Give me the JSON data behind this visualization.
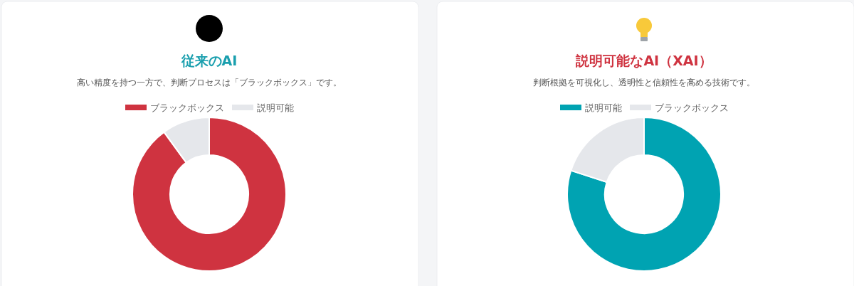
{
  "chart_data": [
    {
      "type": "donut",
      "title": "従来のAI",
      "subtitle": "高い精度を持つ一方で、判断プロセスは「ブラックボックス」です。",
      "categories": [
        "ブラックボックス",
        "説明可能"
      ],
      "values": [
        90,
        10
      ],
      "colors": [
        "#cf3340",
        "#e5e7eb"
      ],
      "legend": "top"
    },
    {
      "type": "donut",
      "title": "説明可能なAI（XAI）",
      "subtitle": "判断根拠を可視化し、透明性と信頼性を高める技術です。",
      "categories": [
        "説明可能",
        "ブラックボックス"
      ],
      "values": [
        80,
        20
      ],
      "colors": [
        "#00a3b2",
        "#e5e7eb"
      ],
      "legend": "top"
    }
  ]
}
